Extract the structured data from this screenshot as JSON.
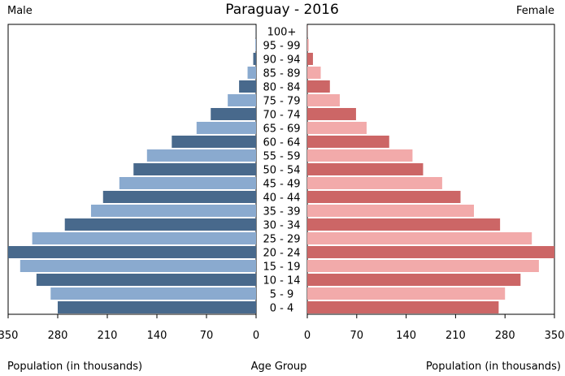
{
  "chart_data": {
    "type": "bar",
    "subtype": "population-pyramid",
    "title": "Paraguay - 2016",
    "left_label": "Male",
    "right_label": "Female",
    "xlabel_left": "Population (in thousands)",
    "xlabel_center": "Age Group",
    "xlabel_right": "Population (in thousands)",
    "xlim": [
      0,
      350
    ],
    "x_ticks": [
      350,
      280,
      210,
      140,
      70,
      0
    ],
    "categories": [
      "100+",
      "95 - 99",
      "90 - 94",
      "85 - 89",
      "80 - 84",
      "75 - 79",
      "70 - 74",
      "65 - 69",
      "60 - 64",
      "55 - 59",
      "50 - 54",
      "45 - 49",
      "40 - 44",
      "35 - 39",
      "30 - 34",
      "25 - 29",
      "20 - 24",
      "15 - 19",
      "10 - 14",
      "5 - 9",
      "0 - 4"
    ],
    "series": [
      {
        "name": "Male",
        "values": [
          0.2,
          1,
          4,
          12,
          24,
          40,
          64,
          84,
          119,
          154,
          173,
          193,
          216,
          233,
          270,
          316,
          350,
          333,
          310,
          290,
          280
        ]
      },
      {
        "name": "Female",
        "values": [
          0.3,
          2,
          8,
          19,
          32,
          46,
          69,
          84,
          116,
          149,
          164,
          191,
          217,
          236,
          273,
          318,
          350,
          328,
          302,
          280,
          271
        ]
      }
    ],
    "grid": false,
    "colors": {
      "male_dark": "#48698c",
      "male_light": "#8aaacf",
      "female_dark": "#cc6666",
      "female_light": "#f2aaaa"
    }
  }
}
